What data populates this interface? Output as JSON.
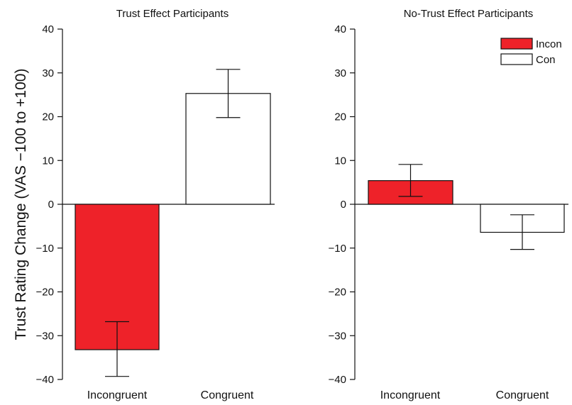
{
  "chart_data": [
    {
      "type": "bar",
      "title": "Trust Effect Participants",
      "ylabel": "Trust Rating Change (VAS −100 to +100)",
      "xlabel": "",
      "categories": [
        "Incongruent",
        "Congruent"
      ],
      "values": [
        -33.2,
        25.3
      ],
      "error_low": [
        -39.3,
        19.8
      ],
      "error_high": [
        -26.8,
        30.8
      ],
      "bar_colors": [
        "#ee2229",
        "#ffffff"
      ],
      "ylim": [
        -40,
        40
      ],
      "yticks": [
        "40",
        "30",
        "20",
        "10",
        "0",
        "−10",
        "−20",
        "−30",
        "−40"
      ],
      "grid": false
    },
    {
      "type": "bar",
      "title": "No-Trust Effect Participants",
      "ylabel": "",
      "xlabel": "",
      "categories": [
        "Incongruent",
        "Congruent"
      ],
      "values": [
        5.4,
        -6.4
      ],
      "error_low": [
        1.8,
        -10.3
      ],
      "error_high": [
        9.1,
        -2.4
      ],
      "bar_colors": [
        "#ee2229",
        "#ffffff"
      ],
      "ylim": [
        -40,
        40
      ],
      "yticks": [
        "40",
        "30",
        "20",
        "10",
        "0",
        "−10",
        "−20",
        "−30",
        "−40"
      ],
      "grid": false,
      "legend": {
        "placement": "top-right",
        "entries": [
          {
            "label": "Incon",
            "color": "#ee2229"
          },
          {
            "label": "Con",
            "color": "#ffffff"
          }
        ]
      }
    }
  ]
}
